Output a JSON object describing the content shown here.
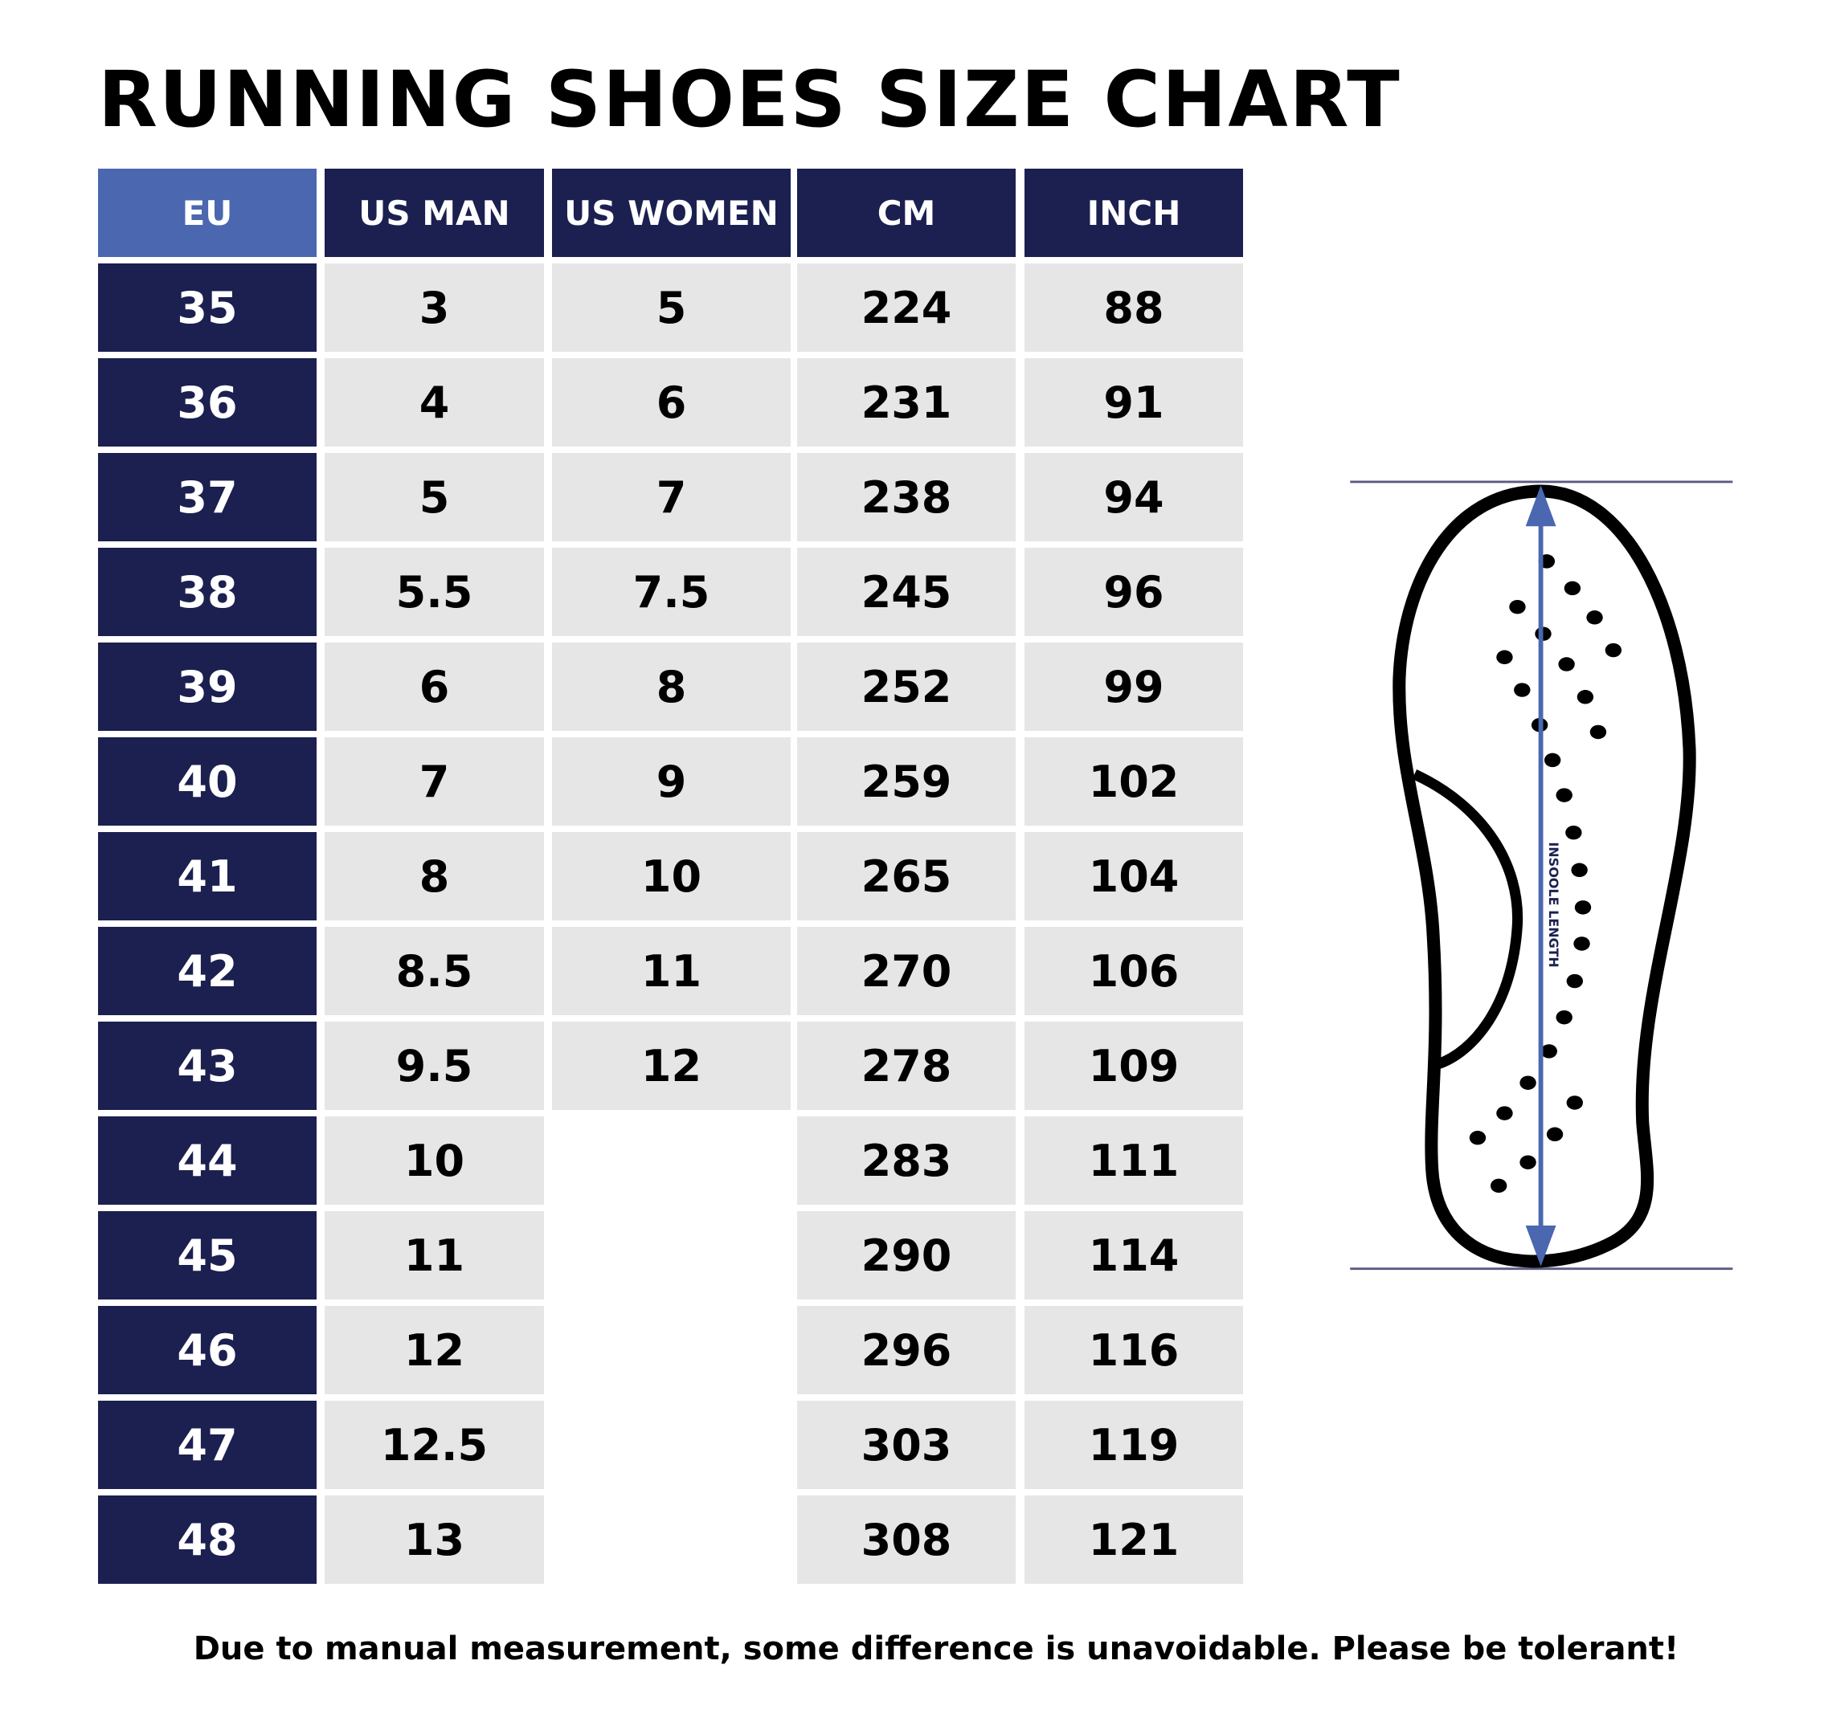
{
  "title": "RUNNING SHOES SIZE CHART",
  "columns": [
    "EU",
    "US MAN",
    "US WOMEN",
    "CM",
    "INCH"
  ],
  "rows": [
    [
      "35",
      "3",
      "5",
      "224",
      "88"
    ],
    [
      "36",
      "4",
      "6",
      "231",
      "91"
    ],
    [
      "37",
      "5",
      "7",
      "238",
      "94"
    ],
    [
      "38",
      "5.5",
      "7.5",
      "245",
      "96"
    ],
    [
      "39",
      "6",
      "8",
      "252",
      "99"
    ],
    [
      "40",
      "7",
      "9",
      "259",
      "102"
    ],
    [
      "41",
      "8",
      "10",
      "265",
      "104"
    ],
    [
      "42",
      "8.5",
      "11",
      "270",
      "106"
    ],
    [
      "43",
      "9.5",
      "12",
      "278",
      "109"
    ],
    [
      "44",
      "10",
      "",
      "283",
      "111"
    ],
    [
      "45",
      "11",
      "",
      "290",
      "114"
    ],
    [
      "46",
      "12",
      "",
      "296",
      "116"
    ],
    [
      "47",
      "12.5",
      "",
      "303",
      "119"
    ],
    [
      "48",
      "13",
      "",
      "308",
      "121"
    ]
  ],
  "diagram": {
    "label": "INSOOLE LENGTH"
  },
  "footer": "Due to manual measurement, some difference is unavoidable. Please be tolerant!",
  "colors": {
    "navy": "#1b2050",
    "accent_blue": "#4a67b0",
    "cell_gray": "#e6e6e6",
    "guide_line": "#5a5a85"
  }
}
